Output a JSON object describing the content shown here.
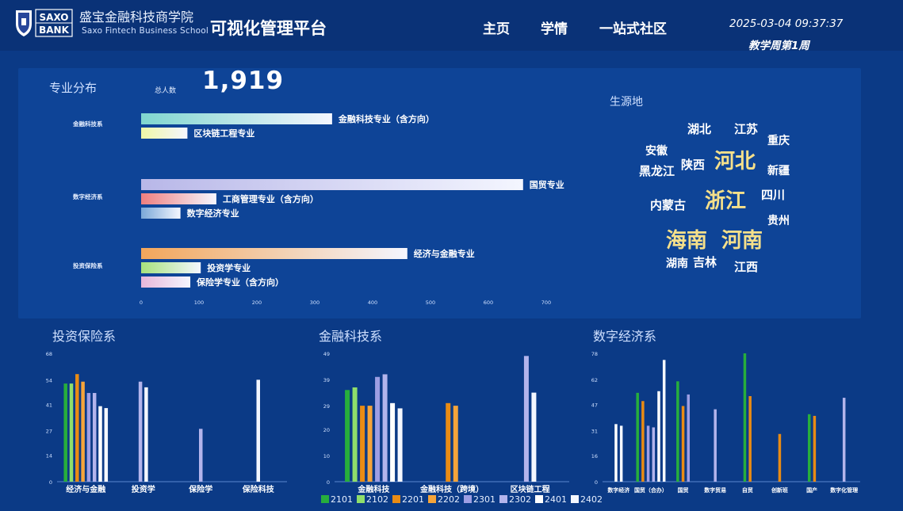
{
  "header": {
    "logo_text_1": "SAXO",
    "logo_text_2": "BANK",
    "school_cn": "盛宝金融科技商学院",
    "school_en": "Saxo Fintech Business School",
    "platform_title": "可视化管理平台",
    "nav": [
      "主页",
      "学情",
      "一站式社区"
    ],
    "datetime": "2025-03-04 09:37:37",
    "week": "教学周第1周"
  },
  "major": {
    "title": "专业分布",
    "total_label": "总人数",
    "total_value": "1,919"
  },
  "origin": {
    "title": "生源地",
    "words": [
      {
        "text": "湖北",
        "size": "medium",
        "color": "#ffffff"
      },
      {
        "text": "江苏",
        "size": "medium",
        "color": "#ffffff"
      },
      {
        "text": "重庆",
        "size": "small",
        "color": "#ffffff"
      },
      {
        "text": "安徽",
        "size": "small",
        "color": "#ffffff"
      },
      {
        "text": "陕西",
        "size": "medium",
        "color": "#ffffff"
      },
      {
        "text": "河北",
        "size": "large",
        "color": "#f6e08a"
      },
      {
        "text": "黑龙江",
        "size": "medium",
        "color": "#ffffff"
      },
      {
        "text": "新疆",
        "size": "small",
        "color": "#ffffff"
      },
      {
        "text": "浙江",
        "size": "large",
        "color": "#f6e08a"
      },
      {
        "text": "四川",
        "size": "medium",
        "color": "#ffffff"
      },
      {
        "text": "内蒙古",
        "size": "medium",
        "color": "#ffffff"
      },
      {
        "text": "贵州",
        "size": "small",
        "color": "#ffffff"
      },
      {
        "text": "海南",
        "size": "large",
        "color": "#f6e08a"
      },
      {
        "text": "河南",
        "size": "large",
        "color": "#f6e08a"
      },
      {
        "text": "湖南",
        "size": "small",
        "color": "#ffffff"
      },
      {
        "text": "吉林",
        "size": "medium",
        "color": "#ffffff"
      },
      {
        "text": "江西",
        "size": "medium",
        "color": "#ffffff"
      }
    ]
  },
  "chart_data": [
    {
      "type": "bar",
      "orientation": "horizontal",
      "xlim": [
        0,
        700
      ],
      "xticks": [
        0,
        100,
        200,
        300,
        400,
        500,
        600,
        700
      ],
      "groups": [
        {
          "name": "金融科技系",
          "bars": [
            {
              "label": "金融科技专业（含方向）",
              "value": 330,
              "color": "#7fd6cf"
            },
            {
              "label": "区块链工程专业",
              "value": 80,
              "color": "#eef7a6"
            }
          ]
        },
        {
          "name": "数字经济系",
          "bars": [
            {
              "label": "国贸专业",
              "value": 660,
              "color": "#b8b7e8"
            },
            {
              "label": "工商管理专业（含方向）",
              "value": 130,
              "color": "#ee7f7f"
            },
            {
              "label": "数字经济专业",
              "value": 68,
              "color": "#7aa8d8"
            }
          ]
        },
        {
          "name": "投资保险系",
          "bars": [
            {
              "label": "经济与金融专业",
              "value": 460,
              "color": "#f2a65b"
            },
            {
              "label": "投资学专业",
              "value": 103,
              "color": "#a6e27c"
            },
            {
              "label": "保险学专业（含方向）",
              "value": 85,
              "color": "#e7b6da"
            }
          ]
        }
      ]
    },
    {
      "type": "bar",
      "title": "投资保险系",
      "ylim": [
        0,
        68
      ],
      "yticks": [
        0,
        14,
        27,
        41,
        54,
        68
      ],
      "categories": [
        "经济与金融",
        "投资学",
        "保险学",
        "保险科技"
      ],
      "series": [
        {
          "name": "2101",
          "values": [
            52,
            0,
            0,
            0
          ]
        },
        {
          "name": "2102",
          "values": [
            52,
            0,
            0,
            0
          ]
        },
        {
          "name": "2201",
          "values": [
            57,
            0,
            0,
            0
          ]
        },
        {
          "name": "2202",
          "values": [
            53,
            0,
            0,
            0
          ]
        },
        {
          "name": "2301",
          "values": [
            47,
            0,
            0,
            0
          ]
        },
        {
          "name": "2302",
          "values": [
            47,
            53,
            28,
            0
          ]
        },
        {
          "name": "2401",
          "values": [
            40,
            0,
            0,
            0
          ]
        },
        {
          "name": "2402",
          "values": [
            39,
            50,
            0,
            54
          ]
        }
      ]
    },
    {
      "type": "bar",
      "title": "金融科技系",
      "ylim": [
        0,
        49
      ],
      "yticks": [
        0,
        10,
        20,
        29,
        39,
        49
      ],
      "categories": [
        "金融科技",
        "金融科技（跨境）",
        "区块链工程"
      ],
      "series": [
        {
          "name": "2101",
          "values": [
            35,
            0,
            0
          ]
        },
        {
          "name": "2102",
          "values": [
            36,
            0,
            0
          ]
        },
        {
          "name": "2201",
          "values": [
            29,
            30,
            0
          ]
        },
        {
          "name": "2202",
          "values": [
            29,
            29,
            0
          ]
        },
        {
          "name": "2301",
          "values": [
            40,
            0,
            0
          ]
        },
        {
          "name": "2302",
          "values": [
            41,
            0,
            48
          ]
        },
        {
          "name": "2401",
          "values": [
            30,
            0,
            0
          ]
        },
        {
          "name": "2402",
          "values": [
            28,
            0,
            34
          ]
        }
      ]
    },
    {
      "type": "bar",
      "title": "数字经济系",
      "ylim": [
        0,
        78
      ],
      "yticks": [
        0,
        16,
        31,
        47,
        62,
        78
      ],
      "categories": [
        "数字经济",
        "国贸（合办）",
        "国贸",
        "数字贸易",
        "自贸",
        "创新班",
        "国产",
        "数字化管理"
      ],
      "series": [
        {
          "name": "2101",
          "values": [
            0,
            54,
            61,
            0,
            78,
            0,
            41,
            0
          ]
        },
        {
          "name": "2102",
          "values": [
            0,
            0,
            0,
            0,
            0,
            0,
            0,
            0
          ]
        },
        {
          "name": "2201",
          "values": [
            0,
            49,
            46,
            0,
            52,
            29,
            40,
            0
          ]
        },
        {
          "name": "2202",
          "values": [
            0,
            0,
            0,
            0,
            0,
            0,
            0,
            0
          ]
        },
        {
          "name": "2301",
          "values": [
            0,
            34,
            53,
            0,
            0,
            0,
            0,
            0
          ]
        },
        {
          "name": "2302",
          "values": [
            0,
            33,
            0,
            44,
            0,
            0,
            0,
            51
          ]
        },
        {
          "name": "2401",
          "values": [
            35,
            55,
            0,
            0,
            0,
            0,
            0,
            0
          ]
        },
        {
          "name": "2402",
          "values": [
            34,
            74,
            0,
            0,
            0,
            0,
            0,
            0
          ]
        }
      ]
    }
  ],
  "legend": [
    {
      "name": "2101",
      "color": "#27ae3c"
    },
    {
      "name": "2102",
      "color": "#8fde6b"
    },
    {
      "name": "2201",
      "color": "#e98b14"
    },
    {
      "name": "2202",
      "color": "#f5a43a"
    },
    {
      "name": "2301",
      "color": "#9d9ee3"
    },
    {
      "name": "2302",
      "color": "#b3b4ec"
    },
    {
      "name": "2401",
      "color": "#ffffff"
    },
    {
      "name": "2402",
      "color": "#f4f7ff"
    }
  ],
  "colors": {
    "background": "#0b3a86",
    "panel": "#0e4497",
    "highlight_word": "#f6e08a"
  }
}
